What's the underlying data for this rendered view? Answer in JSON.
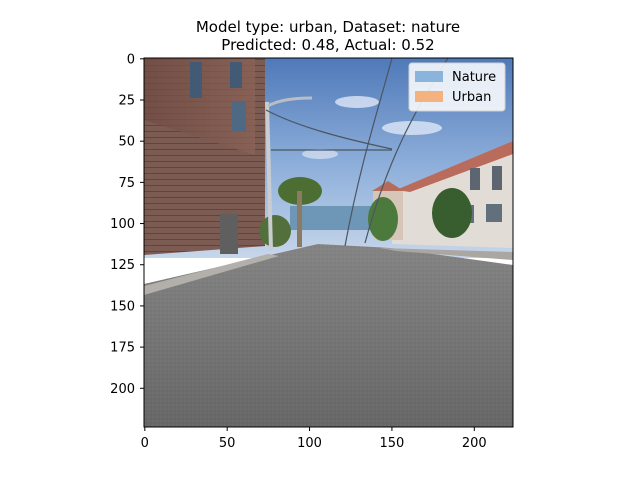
{
  "chart_data": {
    "type": "image",
    "title": [
      "Model type: urban, Dataset: nature",
      "Predicted: 0.48, Actual: 0.52"
    ],
    "xlim": [
      -0.5,
      223.5
    ],
    "ylim": [
      223.5,
      -0.5
    ],
    "x_ticks": [
      0,
      50,
      100,
      150,
      200
    ],
    "y_ticks": [
      0,
      25,
      50,
      75,
      100,
      125,
      150,
      175,
      200
    ],
    "legend": {
      "placement": "top-right",
      "entries": [
        {
          "label": "Nature",
          "color": "#8bb4dc"
        },
        {
          "label": "Urban",
          "color": "#f3b27e"
        }
      ]
    }
  }
}
